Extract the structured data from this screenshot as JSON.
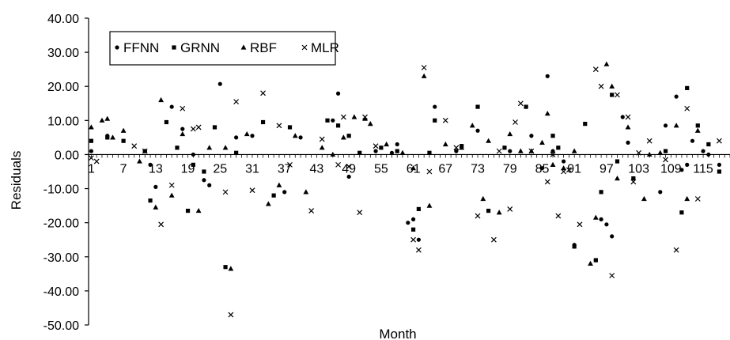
{
  "chart_data": {
    "type": "scatter",
    "title": "",
    "xlabel": "Month",
    "ylabel": "Residuals",
    "ylim": [
      -50,
      40
    ],
    "xlim": [
      1,
      120
    ],
    "y_ticks": [
      "40.00",
      "30.00",
      "20.00",
      "10.00",
      "0.00",
      "-10.00",
      "-20.00",
      "-30.00",
      "-40.00",
      "-50.00"
    ],
    "x_ticks": [
      "1",
      "7",
      "13",
      "19",
      "25",
      "31",
      "37",
      "43",
      "49",
      "55",
      "61",
      "67",
      "73",
      "79",
      "85",
      "91",
      "97",
      "103",
      "109",
      "115"
    ],
    "grid": false,
    "legend": "top-left",
    "series": [
      {
        "name": "FFNN",
        "marker": "circle",
        "x": [
          1,
          4,
          11,
          12,
          13,
          16,
          18,
          20,
          22,
          23,
          25,
          28,
          31,
          37,
          40,
          46,
          47,
          49,
          54,
          57,
          58,
          60,
          61,
          62,
          65,
          69,
          73,
          79,
          83,
          85,
          86,
          87,
          89,
          91,
          95,
          96,
          97,
          98,
          100,
          101,
          107,
          108,
          110,
          111,
          112,
          113,
          115,
          116,
          118
        ],
        "y": [
          1,
          5.5,
          1,
          -3,
          -9.5,
          14,
          7.5,
          0,
          -7.5,
          -9,
          20.7,
          5,
          5.5,
          -11,
          5,
          10,
          17.9,
          -6.5,
          1,
          0.5,
          3,
          -20,
          -19,
          -25,
          14,
          1,
          7,
          1,
          5.5,
          -4,
          23,
          1,
          -2,
          -26.5,
          -31,
          -19,
          -20.5,
          -24,
          11,
          3.5,
          -11,
          8.5,
          17,
          -4.5,
          -3,
          4,
          1,
          0,
          -3
        ]
      },
      {
        "name": "GRNN",
        "marker": "square",
        "x": [
          1,
          4,
          7,
          11,
          12,
          15,
          17,
          19,
          20,
          22,
          24,
          26,
          28,
          33,
          35,
          38,
          45,
          47,
          49,
          51,
          55,
          58,
          61,
          62,
          64,
          65,
          70,
          73,
          75,
          78,
          82,
          87,
          88,
          91,
          93,
          95,
          96,
          98,
          99,
          102,
          108,
          111,
          112,
          114,
          116,
          118
        ],
        "y": [
          4,
          5,
          4,
          1,
          -13.5,
          9.5,
          2,
          -16.5,
          -3,
          -5,
          8,
          -33,
          0.5,
          9.5,
          -12,
          8,
          10,
          8.5,
          5.5,
          0.5,
          2,
          1,
          -22,
          -16,
          0.5,
          10,
          2.5,
          14,
          -16.5,
          2,
          14,
          5.5,
          2,
          -27,
          9,
          -31,
          -11,
          17.5,
          -2,
          -7,
          1,
          -17,
          19.5,
          8.5,
          3,
          -5
        ]
      },
      {
        "name": "RBF",
        "marker": "triangle",
        "x": [
          1,
          3,
          4,
          5,
          7,
          10,
          13,
          14,
          16,
          18,
          21,
          23,
          26,
          27,
          30,
          34,
          36,
          39,
          41,
          44,
          46,
          48,
          50,
          52,
          53,
          56,
          59,
          61,
          63,
          64,
          67,
          70,
          72,
          74,
          75,
          77,
          79,
          81,
          83,
          85,
          86,
          87,
          89,
          91,
          94,
          95,
          97,
          98,
          99,
          101,
          104,
          105,
          107,
          110,
          112,
          114
        ],
        "y": [
          8,
          10,
          10.5,
          5,
          7,
          -2,
          -15.5,
          16,
          -12,
          6,
          -16.5,
          2,
          2,
          -33.5,
          6,
          -14.5,
          -9,
          5.5,
          -11,
          2,
          0,
          5,
          11,
          10.5,
          9,
          3,
          0.5,
          -4,
          23,
          -15,
          3,
          2,
          8.5,
          -13,
          4,
          -17,
          6,
          1,
          1,
          3.5,
          12,
          -3,
          -4,
          1,
          -32,
          -18.5,
          26.5,
          20,
          -7,
          8,
          -13,
          0,
          0.5,
          8.5,
          -13,
          7
        ]
      },
      {
        "name": "MLR",
        "marker": "x",
        "x": [
          1,
          2,
          9,
          11,
          14,
          16,
          18,
          20,
          21,
          26,
          27,
          28,
          31,
          33,
          36,
          38,
          42,
          44,
          47,
          48,
          49,
          51,
          52,
          54,
          61,
          62,
          63,
          64,
          67,
          69,
          73,
          76,
          77,
          79,
          80,
          81,
          83,
          86,
          87,
          88,
          89,
          90,
          92,
          95,
          96,
          98,
          99,
          101,
          102,
          103,
          105,
          108,
          110,
          112,
          114,
          118
        ],
        "y": [
          -1,
          -2,
          2.5,
          1,
          -20.5,
          -9,
          13.5,
          7.5,
          8,
          -11,
          -47,
          15.5,
          -10.5,
          18,
          8.5,
          -3,
          -16.5,
          4.5,
          -3,
          11,
          -3.5,
          -17,
          11,
          2.5,
          -25,
          -28,
          25.5,
          -5,
          10,
          2,
          -18,
          -25,
          1,
          -16,
          9.5,
          15,
          1,
          -8,
          0,
          -18,
          -5,
          -4.5,
          -20.5,
          25,
          20,
          -35.5,
          17.5,
          11,
          -8,
          0.5,
          4,
          -1.5,
          -28,
          13.5,
          -13,
          4
        ]
      }
    ]
  }
}
